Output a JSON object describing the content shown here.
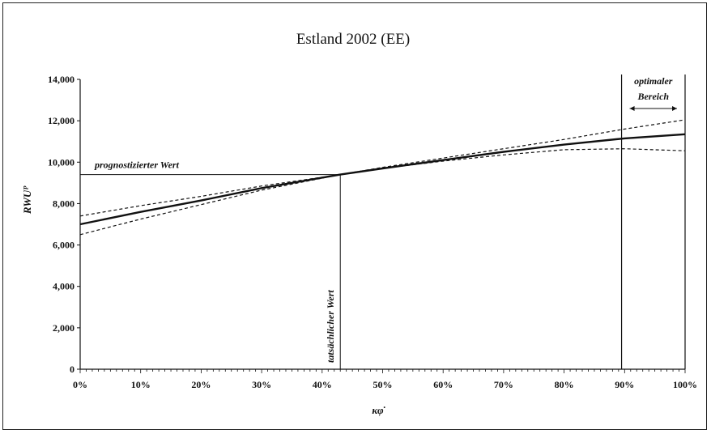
{
  "chart_data": {
    "type": "line",
    "title": "Estland 2002 (EE)",
    "xlabel": "κφ̇",
    "ylabel": "RWUᴾ",
    "xlim": [
      0,
      1
    ],
    "ylim": [
      0,
      14000
    ],
    "x_ticks": [
      "0%",
      "10%",
      "20%",
      "30%",
      "40%",
      "50%",
      "60%",
      "70%",
      "80%",
      "90%",
      "100%"
    ],
    "y_ticks": [
      "0",
      "2,000",
      "4,000",
      "6,000",
      "8,000",
      "10,000",
      "12,000",
      "14,000"
    ],
    "grid": false,
    "series": [
      {
        "style": "solid",
        "points": [
          [
            0,
            7000
          ],
          [
            0.1,
            7600
          ],
          [
            0.2,
            8150
          ],
          [
            0.3,
            8750
          ],
          [
            0.43,
            9400
          ],
          [
            0.5,
            9700
          ],
          [
            0.6,
            10100
          ],
          [
            0.7,
            10500
          ],
          [
            0.8,
            10850
          ],
          [
            0.9,
            11150
          ],
          [
            1.0,
            11350
          ]
        ]
      },
      {
        "style": "dashed-upper",
        "points": [
          [
            0,
            7400
          ],
          [
            0.1,
            7900
          ],
          [
            0.2,
            8350
          ],
          [
            0.3,
            8850
          ],
          [
            0.43,
            9400
          ],
          [
            0.5,
            9750
          ],
          [
            0.6,
            10200
          ],
          [
            0.7,
            10650
          ],
          [
            0.8,
            11100
          ],
          [
            0.9,
            11600
          ],
          [
            1.0,
            12050
          ]
        ]
      },
      {
        "style": "dashed-lower",
        "points": [
          [
            0,
            6500
          ],
          [
            0.1,
            7250
          ],
          [
            0.2,
            7950
          ],
          [
            0.3,
            8650
          ],
          [
            0.43,
            9400
          ],
          [
            0.5,
            9700
          ],
          [
            0.6,
            10050
          ],
          [
            0.7,
            10350
          ],
          [
            0.8,
            10600
          ],
          [
            0.9,
            10650
          ],
          [
            1.0,
            10550
          ]
        ]
      }
    ],
    "annotations": {
      "predicted_label": "prognostizierter Wert",
      "predicted_value": 9400,
      "actual_label": "tatsächlicher Wert",
      "actual_x": 0.43,
      "optimal_label_line1": "optimaler",
      "optimal_label_line2": "Bereich",
      "optimal_range": [
        0.895,
        1.0
      ]
    }
  }
}
